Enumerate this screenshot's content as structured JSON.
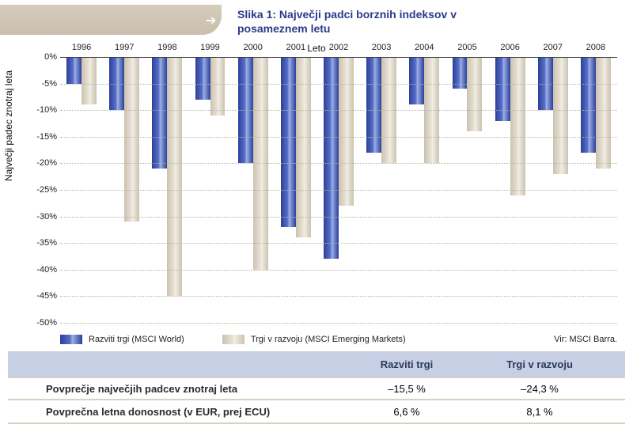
{
  "header": {
    "arrow": "➔",
    "title": "Slika 1: Največji padci borznih indeksov v posameznem letu"
  },
  "chart": {
    "type": "bar",
    "x_title": "Leto",
    "y_title": "Največji padec znotraj leta",
    "years": [
      "1996",
      "1997",
      "1998",
      "1999",
      "2000",
      "2001",
      "2002",
      "2003",
      "2004",
      "2005",
      "2006",
      "2007",
      "2008"
    ],
    "series": [
      {
        "name": "Razviti trgi (MSCI World)",
        "color": "#3a4ea6",
        "values": [
          -5,
          -10,
          -21,
          -8,
          -20,
          -32,
          -38,
          -18,
          -9,
          -6,
          -12,
          -10,
          -18
        ]
      },
      {
        "name": "Trgi v razvoju (MSCI Emerging Markets)",
        "color": "#cbc2b0",
        "values": [
          -9,
          -31,
          -45,
          -11,
          -40,
          -34,
          -28,
          -20,
          -20,
          -14,
          -26,
          -22,
          -21
        ]
      }
    ],
    "ylim": [
      -50,
      0
    ],
    "ytick_step": 5,
    "grid_color": "#b9b2a3",
    "background_color": "#ffffff",
    "bar_gap": 0.1,
    "group_width": 0.7,
    "label_fontsize": 11,
    "title_fontsize": 12,
    "source": "Vir: MSCI Barra."
  },
  "table": {
    "columns": [
      "",
      "Razviti trgi",
      "Trgi v razvoju"
    ],
    "rows": [
      [
        "Povprečje največjih padcev znotraj leta",
        "–15,5 %",
        "–24,3 %"
      ],
      [
        "Povprečna letna donosnost (v EUR, prej ECU)",
        "6,6 %",
        "8,1 %"
      ]
    ],
    "header_bg": "#c7cfe4",
    "row_border": "#d7d1c2"
  }
}
